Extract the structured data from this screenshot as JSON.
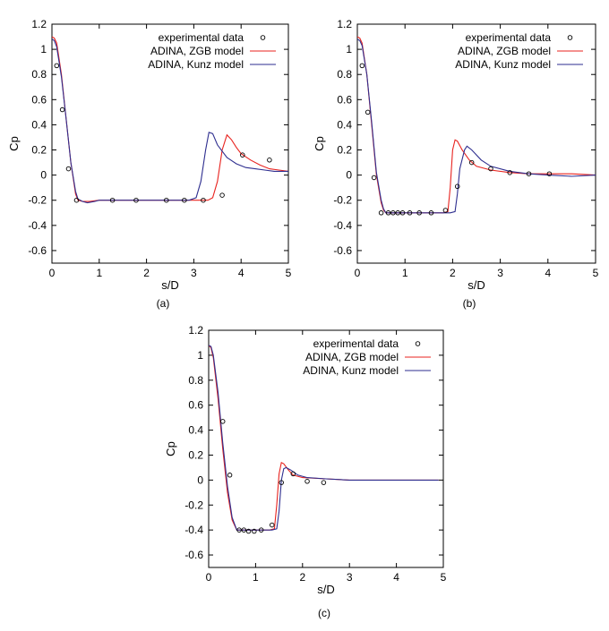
{
  "chart_data": [
    {
      "type": "line",
      "panel_label": "(a)",
      "xlabel": "s/D",
      "ylabel": "Cp",
      "xlim": [
        0,
        5
      ],
      "ylim": [
        -0.7,
        1.2
      ],
      "xticks": [
        "0",
        "1",
        "2",
        "3",
        "4",
        "5"
      ],
      "yticks": [
        "-0.6",
        "-0.4",
        "-0.2",
        "0",
        "0.2",
        "0.4",
        "0.6",
        "0.8",
        "1",
        "1.2"
      ],
      "legend_position": "top-right",
      "grid": false,
      "series": [
        {
          "name": "experimental data",
          "style": "markers",
          "color": "#000000",
          "x": [
            0.1,
            0.22,
            0.35,
            0.52,
            1.28,
            1.78,
            2.42,
            2.8,
            3.2,
            3.6,
            4.03,
            4.6
          ],
          "y": [
            0.87,
            0.52,
            0.05,
            -0.2,
            -0.2,
            -0.2,
            -0.2,
            -0.2,
            -0.2,
            -0.16,
            0.16,
            0.12
          ]
        },
        {
          "name": "ADINA, ZGB model",
          "style": "line",
          "color": "#e8231f",
          "x": [
            0,
            0.05,
            0.1,
            0.2,
            0.3,
            0.4,
            0.5,
            0.55,
            0.65,
            0.8,
            1.0,
            1.5,
            2.0,
            2.5,
            3.0,
            3.3,
            3.4,
            3.5,
            3.6,
            3.7,
            3.8,
            3.9,
            4.0,
            4.2,
            4.4,
            4.6,
            4.8,
            5.0
          ],
          "y": [
            1.1,
            1.09,
            1.05,
            0.8,
            0.45,
            0.1,
            -0.15,
            -0.2,
            -0.21,
            -0.21,
            -0.2,
            -0.2,
            -0.2,
            -0.2,
            -0.2,
            -0.2,
            -0.18,
            -0.05,
            0.2,
            0.32,
            0.28,
            0.22,
            0.17,
            0.12,
            0.08,
            0.05,
            0.04,
            0.03
          ]
        },
        {
          "name": "ADINA, Kunz model",
          "style": "line",
          "color": "#2e2e8f",
          "x": [
            0,
            0.05,
            0.1,
            0.2,
            0.3,
            0.4,
            0.5,
            0.55,
            0.65,
            0.75,
            0.9,
            1.0,
            1.5,
            2.0,
            2.5,
            2.9,
            3.05,
            3.15,
            3.25,
            3.32,
            3.4,
            3.5,
            3.7,
            3.9,
            4.1,
            4.3,
            4.5,
            4.7,
            5.0
          ],
          "y": [
            1.08,
            1.07,
            1.02,
            0.78,
            0.45,
            0.1,
            -0.13,
            -0.19,
            -0.21,
            -0.22,
            -0.21,
            -0.2,
            -0.2,
            -0.2,
            -0.2,
            -0.2,
            -0.18,
            -0.05,
            0.2,
            0.34,
            0.33,
            0.24,
            0.14,
            0.09,
            0.06,
            0.05,
            0.04,
            0.03,
            0.03
          ]
        }
      ]
    },
    {
      "type": "line",
      "panel_label": "(b)",
      "xlabel": "s/D",
      "ylabel": "Cp",
      "xlim": [
        0,
        5
      ],
      "ylim": [
        -0.7,
        1.2
      ],
      "xticks": [
        "0",
        "1",
        "2",
        "3",
        "4",
        "5"
      ],
      "yticks": [
        "-0.6",
        "-0.4",
        "-0.2",
        "0",
        "0.2",
        "0.4",
        "0.6",
        "0.8",
        "1",
        "1.2"
      ],
      "legend_position": "top-right",
      "grid": false,
      "series": [
        {
          "name": "experimental data",
          "style": "markers",
          "color": "#000000",
          "x": [
            0.1,
            0.22,
            0.35,
            0.5,
            0.65,
            0.75,
            0.85,
            0.95,
            1.1,
            1.3,
            1.55,
            1.85,
            2.1,
            2.4,
            2.8,
            3.2,
            3.6,
            4.03
          ],
          "y": [
            0.87,
            0.5,
            -0.02,
            -0.3,
            -0.3,
            -0.3,
            -0.3,
            -0.3,
            -0.3,
            -0.3,
            -0.3,
            -0.28,
            -0.09,
            0.1,
            0.05,
            0.02,
            0.01,
            0.01
          ]
        },
        {
          "name": "ADINA, ZGB model",
          "style": "line",
          "color": "#e8231f",
          "x": [
            0,
            0.05,
            0.1,
            0.2,
            0.3,
            0.4,
            0.5,
            0.55,
            0.6,
            0.7,
            1.0,
            1.5,
            1.8,
            1.9,
            1.95,
            2.0,
            2.05,
            2.1,
            2.2,
            2.35,
            2.5,
            2.8,
            3.2,
            3.6,
            4.0,
            4.5,
            5.0
          ],
          "y": [
            1.1,
            1.09,
            1.05,
            0.8,
            0.4,
            0.0,
            -0.22,
            -0.28,
            -0.3,
            -0.3,
            -0.3,
            -0.3,
            -0.3,
            -0.29,
            -0.1,
            0.2,
            0.28,
            0.27,
            0.2,
            0.12,
            0.07,
            0.04,
            0.02,
            0.01,
            0.01,
            0.01,
            0.0
          ]
        },
        {
          "name": "ADINA, Kunz model",
          "style": "line",
          "color": "#2e2e8f",
          "x": [
            0,
            0.05,
            0.1,
            0.2,
            0.3,
            0.4,
            0.5,
            0.55,
            0.6,
            0.7,
            1.0,
            1.5,
            1.95,
            2.05,
            2.1,
            2.15,
            2.25,
            2.3,
            2.4,
            2.6,
            2.8,
            3.2,
            3.6,
            4.0,
            4.5,
            5.0
          ],
          "y": [
            1.08,
            1.07,
            1.03,
            0.8,
            0.42,
            0.02,
            -0.2,
            -0.27,
            -0.3,
            -0.3,
            -0.3,
            -0.3,
            -0.3,
            -0.29,
            -0.15,
            0.05,
            0.2,
            0.23,
            0.2,
            0.12,
            0.07,
            0.03,
            0.01,
            0.0,
            -0.01,
            0.0
          ]
        }
      ]
    },
    {
      "type": "line",
      "panel_label": "(c)",
      "xlabel": "s/D",
      "ylabel": "Cp",
      "xlim": [
        0,
        5
      ],
      "ylim": [
        -0.7,
        1.2
      ],
      "xticks": [
        "0",
        "1",
        "2",
        "3",
        "4",
        "5"
      ],
      "yticks": [
        "-0.6",
        "-0.4",
        "-0.2",
        "0",
        "0.2",
        "0.4",
        "0.6",
        "0.8",
        "1",
        "1.2"
      ],
      "legend_position": "top-right",
      "grid": false,
      "series": [
        {
          "name": "experimental data",
          "style": "markers",
          "color": "#000000",
          "x": [
            0.3,
            0.45,
            0.65,
            0.75,
            0.85,
            0.97,
            1.12,
            1.35,
            1.55,
            1.8,
            2.1,
            2.45
          ],
          "y": [
            0.47,
            0.04,
            -0.4,
            -0.4,
            -0.41,
            -0.41,
            -0.4,
            -0.36,
            -0.02,
            0.05,
            -0.01,
            -0.02
          ]
        },
        {
          "name": "ADINA, ZGB model",
          "style": "line",
          "color": "#e8231f",
          "x": [
            0,
            0.05,
            0.1,
            0.2,
            0.3,
            0.4,
            0.5,
            0.6,
            0.7,
            1.0,
            1.3,
            1.4,
            1.45,
            1.5,
            1.55,
            1.6,
            1.7,
            1.8,
            2.0,
            2.5,
            3.0,
            4.0,
            4.9
          ],
          "y": [
            1.08,
            1.06,
            0.98,
            0.65,
            0.25,
            -0.1,
            -0.32,
            -0.4,
            -0.4,
            -0.4,
            -0.4,
            -0.39,
            -0.2,
            0.05,
            0.14,
            0.13,
            0.08,
            0.04,
            0.02,
            0.01,
            0.0,
            0.0,
            0.0
          ]
        },
        {
          "name": "ADINA, Kunz model",
          "style": "line",
          "color": "#2e2e8f",
          "x": [
            0,
            0.05,
            0.1,
            0.2,
            0.3,
            0.4,
            0.5,
            0.6,
            0.7,
            1.0,
            1.35,
            1.45,
            1.5,
            1.55,
            1.6,
            1.65,
            1.75,
            1.9,
            2.1,
            2.5,
            3.0,
            4.0,
            4.9
          ],
          "y": [
            1.08,
            1.07,
            1.0,
            0.7,
            0.3,
            -0.05,
            -0.3,
            -0.4,
            -0.4,
            -0.4,
            -0.4,
            -0.39,
            -0.25,
            0.0,
            0.09,
            0.1,
            0.08,
            0.04,
            0.02,
            0.01,
            0.0,
            0.0,
            0.0
          ]
        }
      ]
    }
  ]
}
